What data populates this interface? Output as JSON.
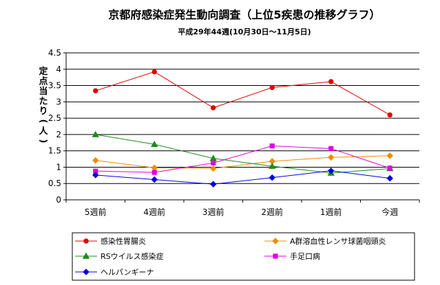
{
  "chart_data": {
    "type": "line",
    "title": "京都府感染症発生動向調査（上位5疾患の推移グラフ）",
    "subtitle": "平成29年44週(10月30日～11月5日)",
    "ylabel": "定点当たり(人)",
    "xlabel": "",
    "categories": [
      "5週前",
      "4週前",
      "3週前",
      "2週前",
      "1週前",
      "今週"
    ],
    "ylim": [
      0,
      4.5
    ],
    "ytick_step": 0.5,
    "yticks": [
      "0",
      "0.5",
      "1",
      "1.5",
      "2",
      "2.5",
      "3",
      "3.5",
      "4",
      "4.5"
    ],
    "grid": true,
    "legend_position": "bottom",
    "series": [
      {
        "name": "感染性胃腸炎",
        "color": "#e00000",
        "marker": "circle",
        "values": [
          3.34,
          3.92,
          2.82,
          3.44,
          3.62,
          2.6
        ]
      },
      {
        "name": "A群溶血性レンサ球菌咽頭炎",
        "color": "#f08c00",
        "marker": "diamond",
        "values": [
          1.21,
          0.98,
          0.96,
          1.18,
          1.3,
          1.35
        ]
      },
      {
        "name": "RSウイルス感染症",
        "color": "#1a8c1a",
        "marker": "triangle",
        "values": [
          2.0,
          1.7,
          1.27,
          1.03,
          0.82,
          0.96
        ]
      },
      {
        "name": "手足口病",
        "color": "#e000e0",
        "marker": "square",
        "values": [
          0.88,
          0.84,
          1.13,
          1.65,
          1.57,
          0.97
        ]
      },
      {
        "name": "ヘルパンギーナ",
        "color": "#0000e0",
        "marker": "diamond",
        "values": [
          0.76,
          0.62,
          0.48,
          0.68,
          0.89,
          0.66
        ]
      }
    ]
  }
}
